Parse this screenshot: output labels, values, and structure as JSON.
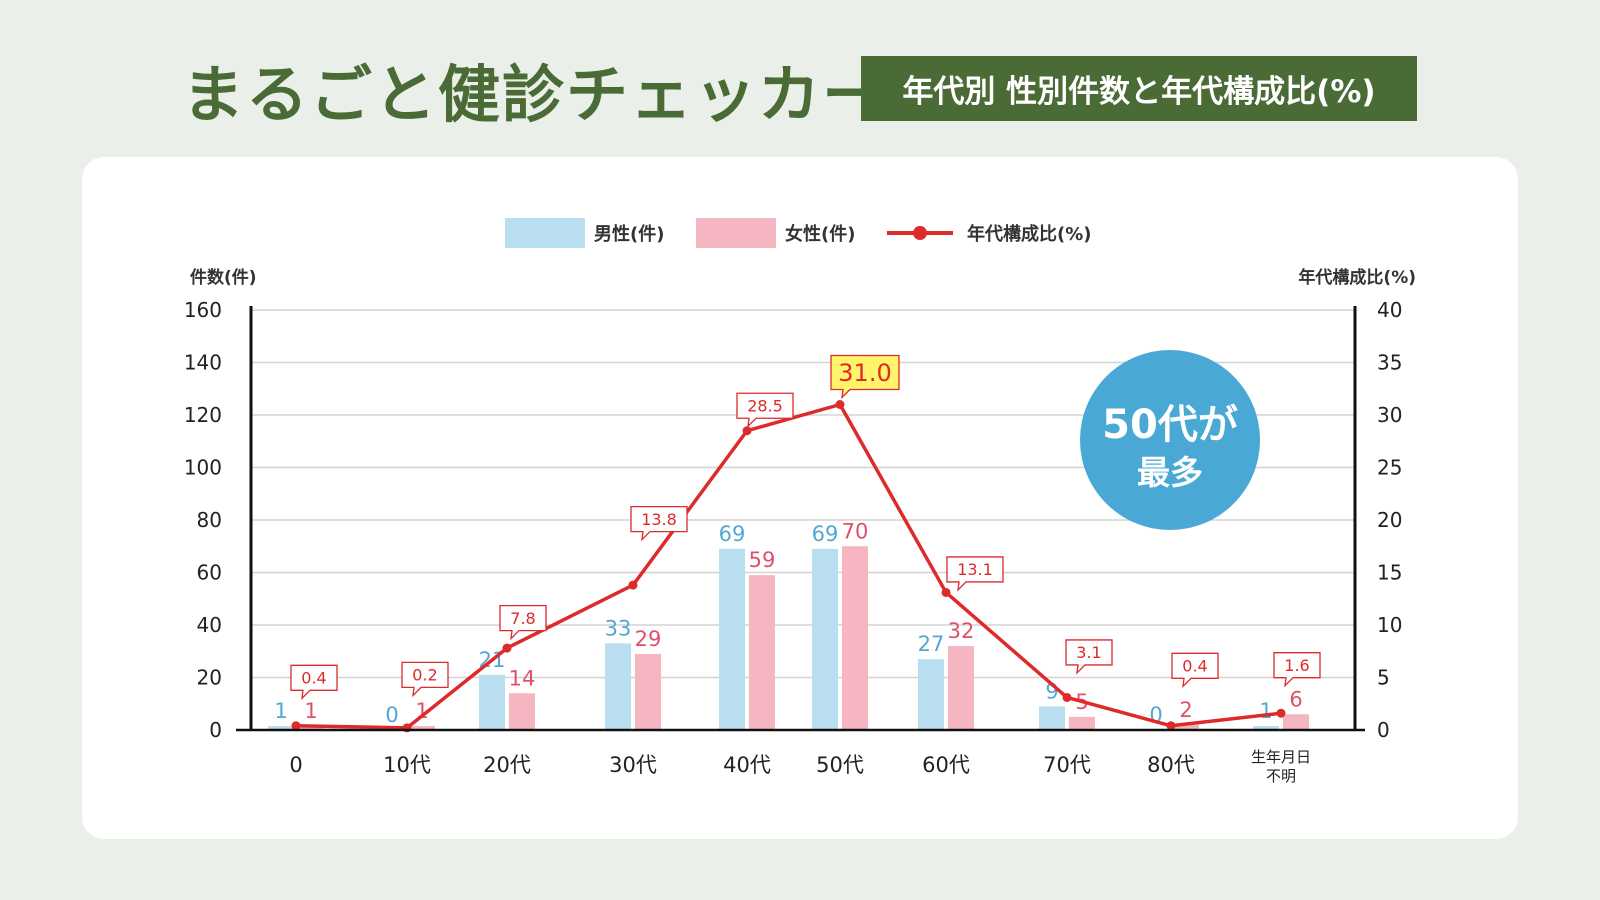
{
  "title": "まるごと健診チェッカー",
  "subtitle": "年代別 性別件数と年代構成比(%)",
  "legend": {
    "male": "男性(件)",
    "female": "女性(件)",
    "ratio": "年代構成比(%)"
  },
  "callout": {
    "line1": "50代が",
    "line2": "最多"
  },
  "colors": {
    "male": "#b8def0",
    "female": "#f6b6c1",
    "line": "#dd2a2a",
    "male_label": "#52a7d3",
    "female_label": "#e0506b",
    "title_green": "#4a6b35",
    "callout": "#4aa8d4",
    "highlight_fill": "#fff46a"
  },
  "chart_data": {
    "type": "bar",
    "categories": [
      "0",
      "10代",
      "20代",
      "30代",
      "40代",
      "50代",
      "60代",
      "70代",
      "80代",
      "生年月日\n不明"
    ],
    "series": [
      {
        "name": "男性(件)",
        "values": [
          1,
          0,
          21,
          33,
          69,
          69,
          27,
          9,
          0,
          1
        ],
        "axis": "left"
      },
      {
        "name": "女性(件)",
        "values": [
          1,
          1,
          14,
          29,
          59,
          70,
          32,
          5,
          2,
          6
        ],
        "axis": "left"
      },
      {
        "name": "年代構成比(%)",
        "type": "line",
        "values": [
          0.4,
          0.2,
          7.8,
          13.8,
          28.5,
          31.0,
          13.1,
          3.1,
          0.4,
          1.6
        ],
        "axis": "right",
        "highlight": "31.0"
      }
    ],
    "ylabel_left": "件数(件)",
    "ylabel_right": "年代構成比(%)",
    "ylim_left": [
      0,
      160
    ],
    "ylim_right": [
      0,
      40
    ],
    "yticks_left": [
      "0",
      "20",
      "40",
      "60",
      "80",
      "100",
      "120",
      "140",
      "160"
    ],
    "yticks_right": [
      "0",
      "5",
      "10",
      "15",
      "20",
      "25",
      "30",
      "35",
      "40"
    ],
    "grid": true,
    "legend_position": "top-center"
  }
}
